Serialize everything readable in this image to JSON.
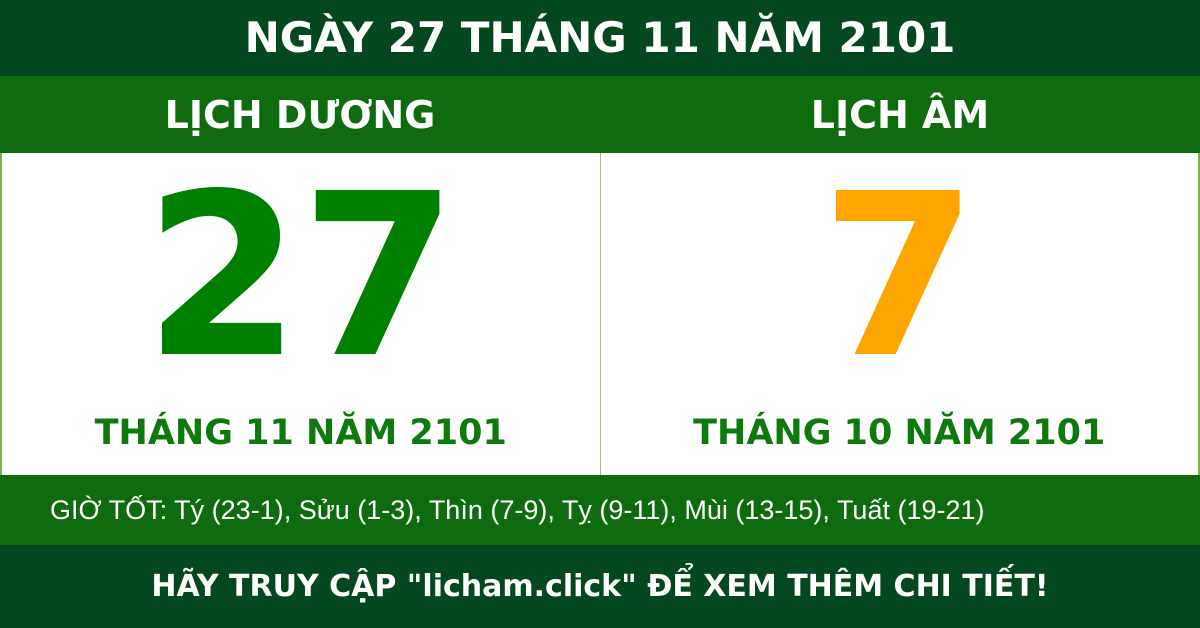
{
  "header": {
    "title": "NGÀY 27 THÁNG 11 NĂM 2101"
  },
  "solar": {
    "label": "LỊCH DƯƠNG",
    "day": "27",
    "month_year": "THÁNG 11 NĂM 2101"
  },
  "lunar": {
    "label": "LỊCH ÂM",
    "day": "7",
    "month_year": "THÁNG 10 NĂM 2101"
  },
  "good_hours": "GIỜ TỐT: Tý (23-1), Sửu (1-3), Thìn (7-9), Tỵ (9-11), Mùi (13-15), Tuất (19-21)",
  "footer": "HÃY TRUY CẬP \"licham.click\" ĐỂ XEM THÊM CHI TIẾT!",
  "colors": {
    "dark_green": "#03481f",
    "band_green": "#0e6b0e",
    "solar_day": "#008000",
    "lunar_day": "#ffa500"
  }
}
